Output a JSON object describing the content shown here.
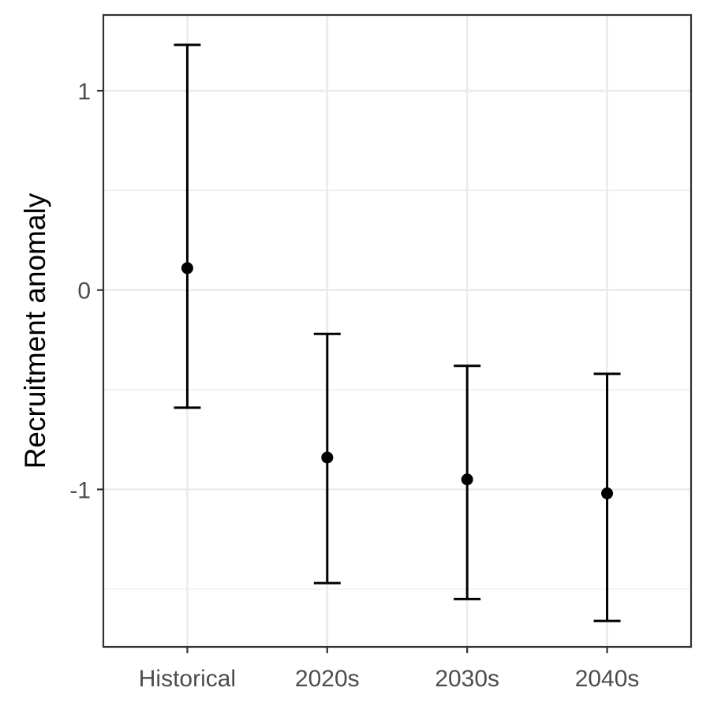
{
  "chart_data": {
    "type": "errorbar",
    "title": "",
    "xlabel": "",
    "ylabel": "Recruitment anomaly",
    "categories": [
      "Historical",
      "2020s",
      "2030s",
      "2040s"
    ],
    "series": [
      {
        "values": [
          0.11,
          -0.84,
          -0.95,
          -1.02
        ],
        "lower": [
          -0.59,
          -1.47,
          -1.55,
          -1.66
        ],
        "upper": [
          1.23,
          -0.22,
          -0.38,
          -0.42
        ]
      }
    ],
    "y_ticks": [
      1,
      0,
      -1
    ],
    "y_tick_labels": [
      "1",
      "0",
      "-1"
    ],
    "ylim": [
      -1.79,
      1.38
    ],
    "grid": true,
    "legend": "none",
    "colors": {
      "point": "#000000",
      "grid": "#ebebeb",
      "border": "#333333",
      "text": "#4d4d4d"
    }
  }
}
